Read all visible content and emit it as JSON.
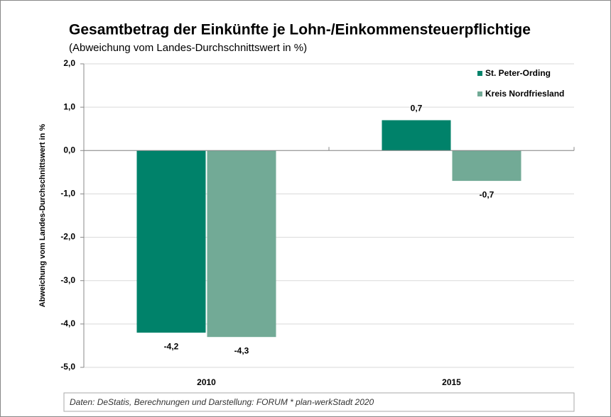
{
  "chart_data": {
    "type": "bar",
    "title": "Gesamtbetrag der Einkünfte je Lohn-/Einkommensteuerpflichtige",
    "subtitle": "(Abweichung vom Landes-Durchschnittswert in %)",
    "y_label": "Abweichung vom Landes-Durchschnittswert in %",
    "source": "Daten: DeStatis, Berechnungen und Darstellung: FORUM * plan-werkStadt 2020",
    "categories": [
      "2010",
      "2015"
    ],
    "series": [
      {
        "name": "St. Peter-Ording",
        "color": "#00826a",
        "values": [
          -4.2,
          0.7
        ],
        "value_labels": [
          "-4,2",
          "0,7"
        ]
      },
      {
        "name": "Kreis Nordfriesland",
        "color": "#72aa96",
        "values": [
          -4.3,
          -0.7
        ],
        "value_labels": [
          "-4,3",
          "-0,7"
        ]
      }
    ],
    "ylim": [
      -5,
      2
    ],
    "yticks": [
      {
        "value": 2,
        "label": "2,0"
      },
      {
        "value": 1,
        "label": "1,0"
      },
      {
        "value": 0,
        "label": "0,0"
      },
      {
        "value": -1,
        "label": "-1,0"
      },
      {
        "value": -2,
        "label": "-2,0"
      },
      {
        "value": -3,
        "label": "-3,0"
      },
      {
        "value": -4,
        "label": "-4,0"
      },
      {
        "value": -5,
        "label": "-5,0"
      }
    ],
    "grid": true,
    "legend": "top-right"
  }
}
